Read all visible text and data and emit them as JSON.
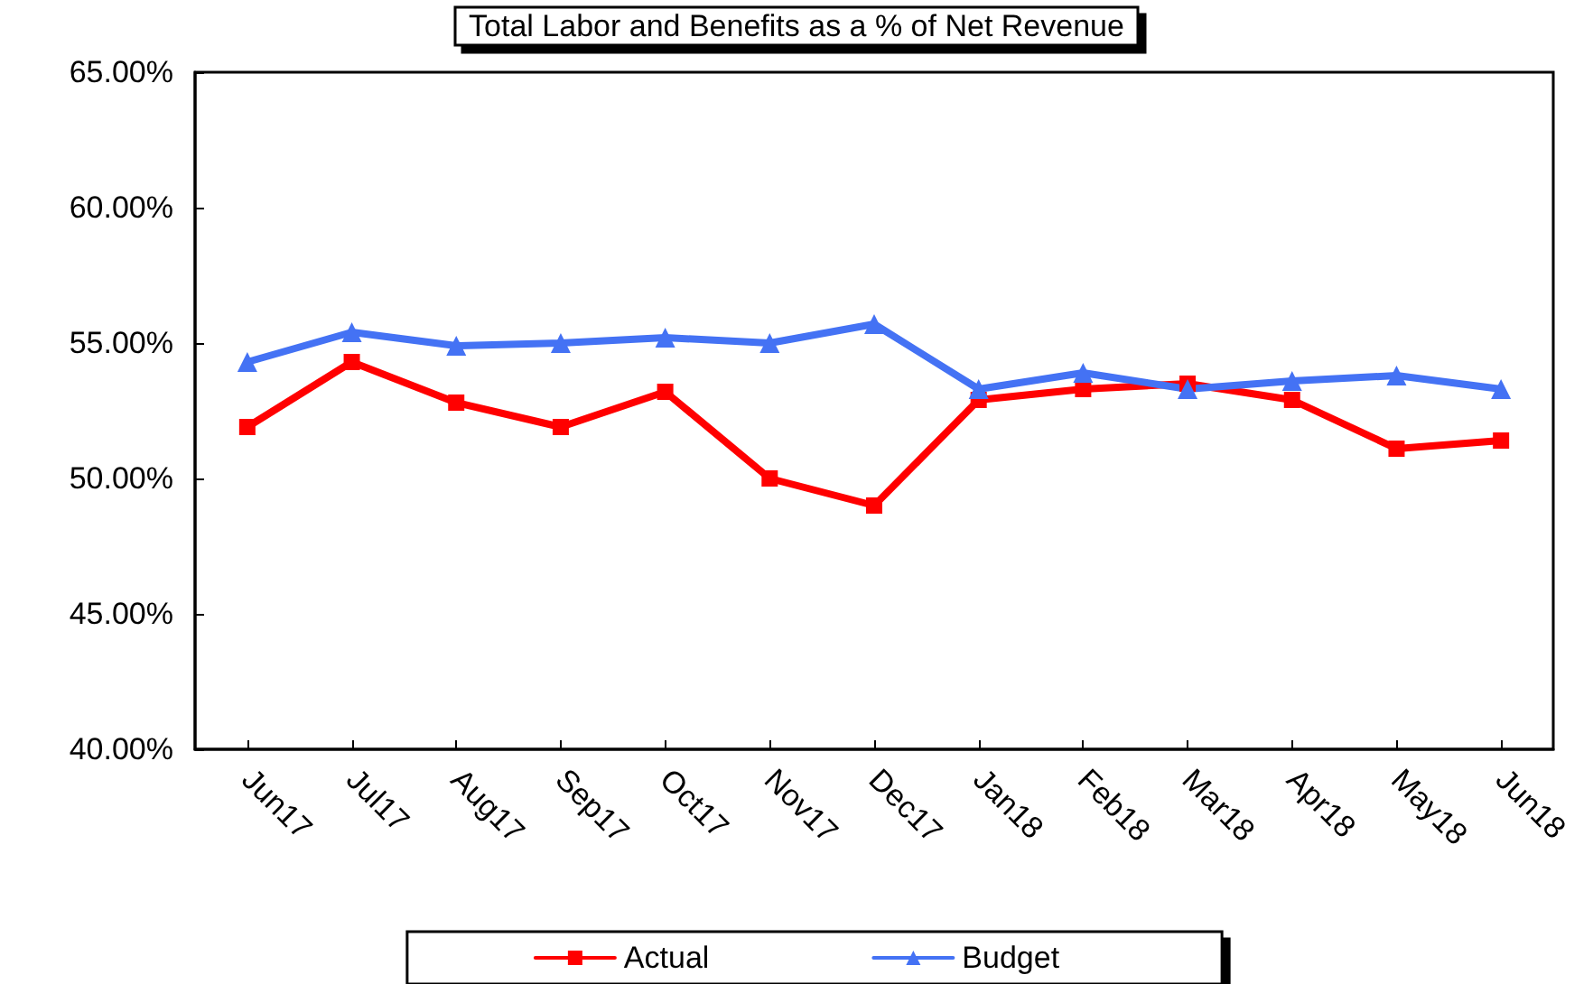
{
  "chart_data": {
    "type": "line",
    "title": "Total Labor and Benefits as a % of Net Revenue",
    "categories": [
      "Jun17",
      "Jul17",
      "Aug17",
      "Sep17",
      "Oct17",
      "Nov17",
      "Dec17",
      "Jan18",
      "Feb18",
      "Mar18",
      "Apr18",
      "May18",
      "Jun18"
    ],
    "series": [
      {
        "name": "Actual",
        "color": "#ff0000",
        "marker": "square",
        "values": [
          51.9,
          54.3,
          52.8,
          51.9,
          53.2,
          50.0,
          49.0,
          52.9,
          53.3,
          53.5,
          52.9,
          51.1,
          51.4
        ]
      },
      {
        "name": "Budget",
        "color": "#4472f4",
        "marker": "triangle",
        "values": [
          54.3,
          55.4,
          54.9,
          55.0,
          55.2,
          55.0,
          55.7,
          53.3,
          53.9,
          53.3,
          53.6,
          53.8,
          53.3
        ]
      }
    ],
    "ylim": [
      40,
      65
    ],
    "yticks": [
      {
        "value": 40,
        "label": "40.00%"
      },
      {
        "value": 45,
        "label": "45.00%"
      },
      {
        "value": 50,
        "label": "50.00%"
      },
      {
        "value": 55,
        "label": "55.00%"
      },
      {
        "value": 60,
        "label": "60.00%"
      },
      {
        "value": 65,
        "label": "65.00%"
      }
    ],
    "grid": false,
    "legend": "bottom",
    "line_style": "solid"
  }
}
